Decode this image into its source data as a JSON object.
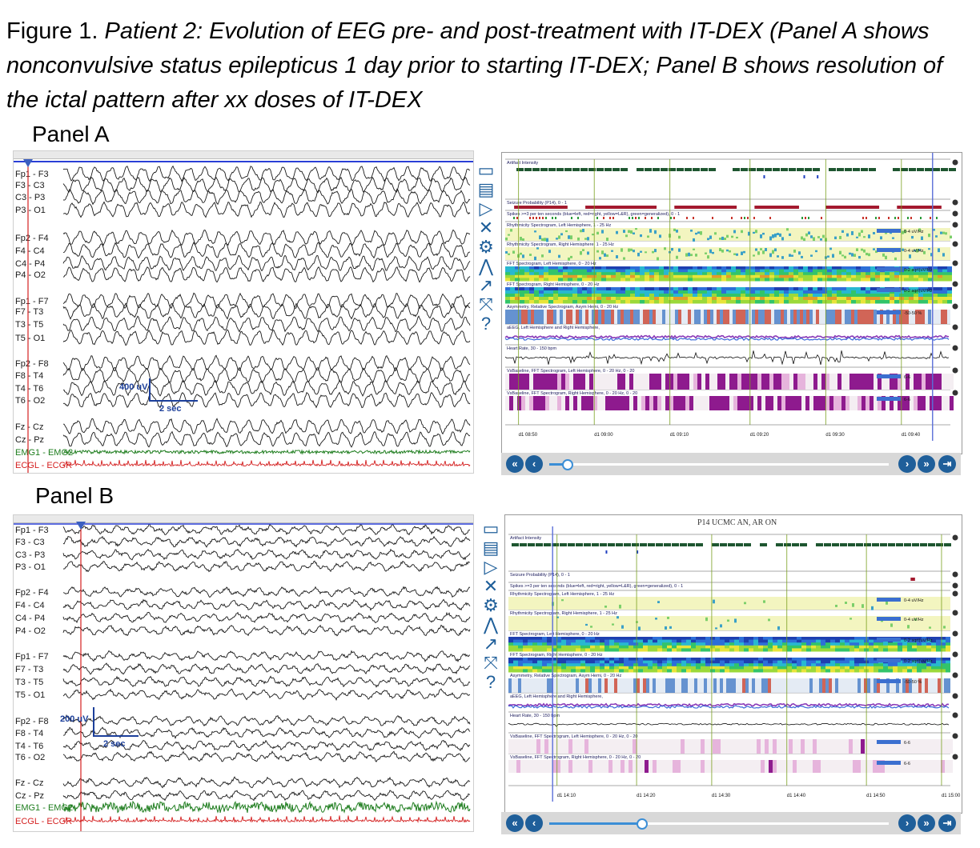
{
  "caption": {
    "lead": "Figure 1. ",
    "italic": "Patient 2: Evolution of EEG pre- and post-treatment with IT-DEX (Panel A shows nonconvulsive status epilepticus 1 day prior to starting IT-DEX; Panel B shows resolution of the ictal pattern after xx doses of IT-DEX"
  },
  "panel_a": {
    "label": "Panel A",
    "channels": [
      "Fp1 - F3",
      "F3 - C3",
      "C3 - P3",
      "P3 - O1",
      "Fp2 - F4",
      "F4 - C4",
      "C4 - P4",
      "P4 - O2",
      "Fp1 - F7",
      "F7 - T3",
      "T3 - T5",
      "T5 - O1",
      "Fp2 - F8",
      "F8 - T4",
      "T4 - T6",
      "T6 - O2",
      "Fz - Cz",
      "Cz - Pz",
      "EMG1 - EMG2",
      "ECGL - ECGR"
    ],
    "scale_amp": "400 uV",
    "scale_time": "2 sec",
    "trend_rows": [
      "Artifact Intensity",
      "Seizure Probability (P14), 0 - 1",
      "Spikes >=3 per ten seconds (blue=left, red=right, yellow=L&R), green=generalized), 0 - 1",
      "Rhythmicity Spectrogram, Left Hemisphere, 1 - 25 Hz",
      "Rhythmicity Spectrogram, Right Hemisphere, 1 - 25 Hz",
      "FFT Spectrogram, Left Hemisphere, 0 - 20 Hz",
      "FFT Spectrogram, Right Hemisphere, 0 - 20 Hz",
      "Asymmetry, Relative Spectrogram, Asym Hemi, 0 - 20 Hz",
      "aEEG, Left Hemisphere and Right Hemisphere,",
      "Heart Rate, 30 - 150 bpm",
      "VsBaseline, FFT Spectrogram, Left Hemisphere, 0 - 20 Hz, 0 - 20",
      "VsBaseline, FFT Spectrogram, Right Hemisphere, 0 - 20 Hz, 0 - 20"
    ],
    "time_ticks": [
      "d1 08:50",
      "d1 09:00",
      "d1 09:10",
      "d1 09:20",
      "d1 09:30",
      "d1 09:40"
    ],
    "scale_labels": [
      "0-4 uV/Hz",
      "0-4 uV/Hz",
      "0-2 sqrt(uV/Hz",
      "0-2 sqrt(uV/Hz",
      "-50-50 %",
      "6-6",
      "6-6"
    ]
  },
  "panel_b": {
    "label": "Panel B",
    "device_title": "P14 UCMC AN, AR ON",
    "channels": [
      "Fp1 - F3",
      "F3 - C3",
      "C3 - P3",
      "P3 - O1",
      "Fp2 - F4",
      "F4 - C4",
      "C4 - P4",
      "P4 - O2",
      "Fp1 - F7",
      "F7 - T3",
      "T3 - T5",
      "T5 - O1",
      "Fp2 - F8",
      "F8 - T4",
      "T4 - T6",
      "T6 - O2",
      "Fz - Cz",
      "Cz - Pz",
      "EMG1 - EMG2",
      "ECGL - ECGR"
    ],
    "scale_amp": "200 uV",
    "scale_time": "2 sec",
    "trend_rows": [
      "Artifact Intensity",
      "Seizure Probability (P14), 0 - 1",
      "Spikes >=3 per ten seconds (blue=left, red=right, yellow=L&R), green=generalized), 0 - 1",
      "Rhythmicity Spectrogram, Left Hemisphere, 1 - 25 Hz",
      "Rhythmicity Spectrogram, Right Hemisphere, 1 - 25 Hz",
      "FFT Spectrogram, Left Hemisphere, 0 - 20 Hz",
      "FFT Spectrogram, Right Hemisphere, 0 - 20 Hz",
      "Asymmetry, Relative Spectrogram, Asym Hemi, 0 - 20 Hz",
      "aEEG, Left Hemisphere and Right Hemisphere,",
      "Heart Rate, 30 - 150 bpm",
      "VsBaseline, FFT Spectrogram, Left Hemisphere, 0 - 20 Hz, 0 - 20",
      "VsBaseline, FFT Spectrogram, Right Hemisphere, 0 - 20 Hz, 0 - 20"
    ],
    "time_ticks": [
      "d1 14:10",
      "d1 14:20",
      "d1 14:30",
      "d1 14:40",
      "d1 14:50",
      "d1 15:00"
    ],
    "scale_labels": [
      "0-4 uV/Hz",
      "0-4 uV/Hz",
      "0-2 sqrt(uV/Hz",
      "0-2 sqrt(uV/Hz",
      "-50-50 %",
      "6-6",
      "6-6"
    ]
  },
  "sidebar_icons": [
    "monitor-icon",
    "book-icon",
    "play-icon",
    "close-icon",
    "gear-icon",
    "waveform-icon",
    "pen-icon",
    "expand-icon",
    "help-icon"
  ],
  "sidebar_glyphs": [
    "▭",
    "▤",
    "▷",
    "✕",
    "⚙",
    "⋀",
    "↗",
    "⤧",
    "?"
  ],
  "nav_glyphs": [
    "«",
    "‹",
    "›",
    "»",
    "⇥"
  ],
  "colors": {
    "eeg_trace": "#1a1a1a",
    "emg_trace": "#1e7d1e",
    "ecg_trace": "#d42020",
    "marker_red": "#d42020",
    "scale_bar": "#1c3f9a",
    "accent_blue": "#1f5f9a",
    "artifact_green": "#1e5630",
    "seizure_red": "#a3192e"
  }
}
